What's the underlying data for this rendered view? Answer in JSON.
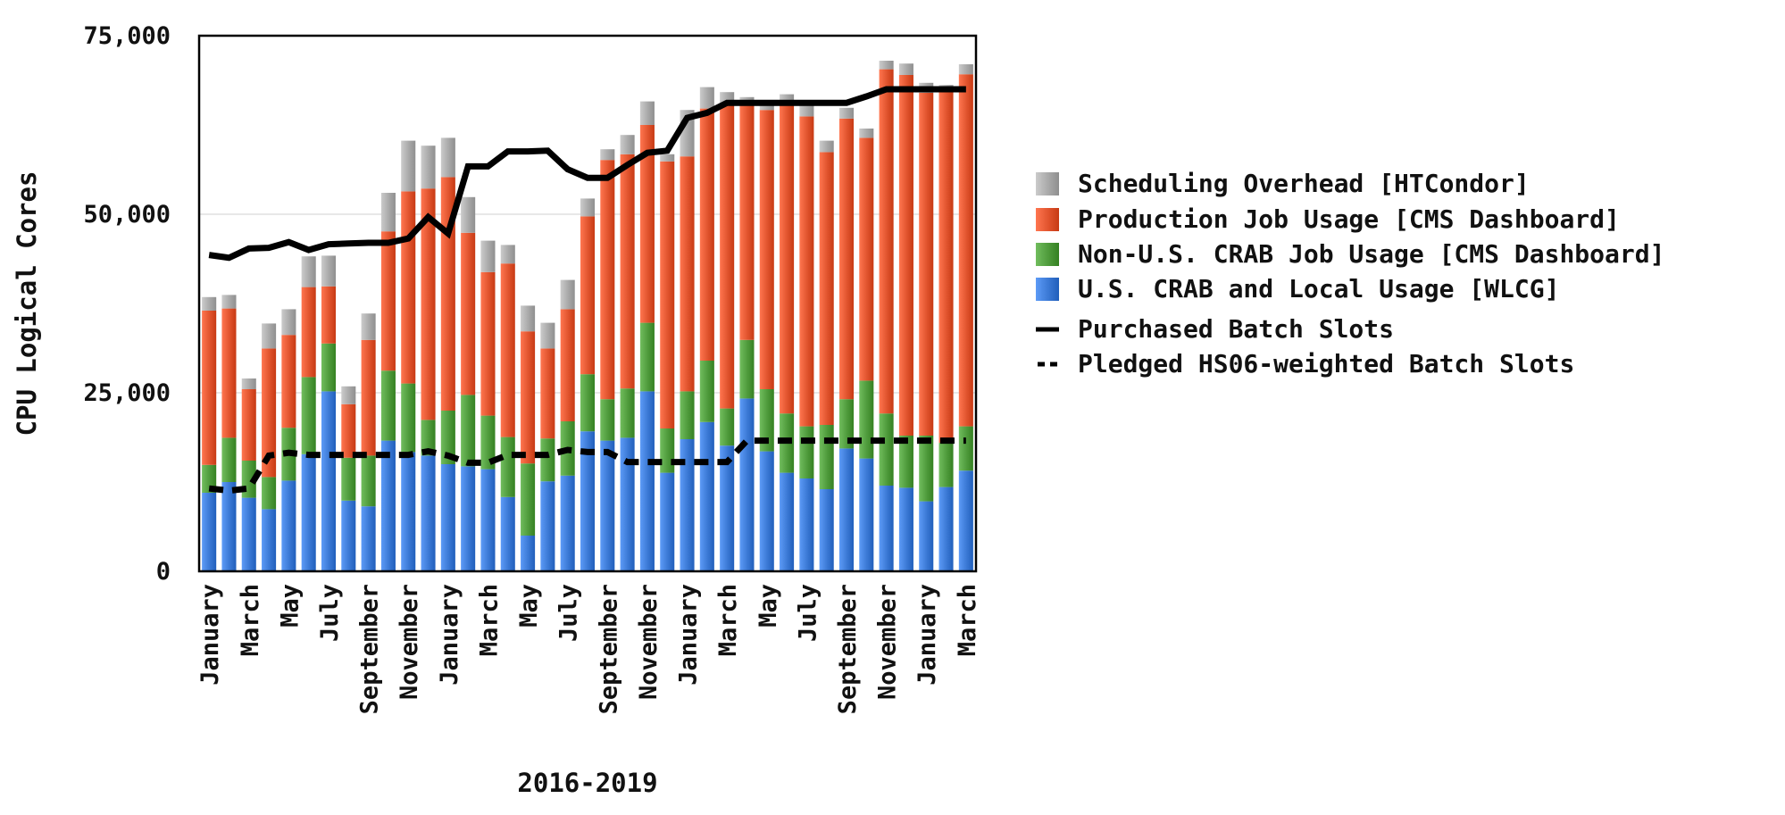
{
  "chart_data": {
    "type": "bar",
    "stacked": true,
    "xlabel": "2016-2019",
    "ylabel": "CPU Logical Cores",
    "ylim": [
      0,
      75000
    ],
    "yticks": [
      0,
      25000,
      50000,
      75000
    ],
    "ytick_labels": [
      "0",
      "25,000",
      "50,000",
      "75,000"
    ],
    "grid": "horizontal",
    "legend_position": "right",
    "categories": [
      "Jan 2016",
      "Feb 2016",
      "Mar 2016",
      "Apr 2016",
      "May 2016",
      "Jun 2016",
      "Jul 2016",
      "Aug 2016",
      "Sep 2016",
      "Oct 2016",
      "Nov 2016",
      "Dec 2016",
      "Jan 2017",
      "Feb 2017",
      "Mar 2017",
      "Apr 2017",
      "May 2017",
      "Jun 2017",
      "Jul 2017",
      "Aug 2017",
      "Sep 2017",
      "Oct 2017",
      "Nov 2017",
      "Dec 2017",
      "Jan 2018",
      "Feb 2018",
      "Mar 2018",
      "Apr 2018",
      "May 2018",
      "Jun 2018",
      "Jul 2018",
      "Aug 2018",
      "Sep 2018",
      "Oct 2018",
      "Nov 2018",
      "Dec 2018",
      "Jan 2019",
      "Feb 2019",
      "Mar 2019"
    ],
    "x_tick_labels": [
      "January",
      "",
      "March",
      "",
      "May",
      "",
      "July",
      "",
      "September",
      "",
      "November",
      "",
      "January",
      "",
      "March",
      "",
      "May",
      "",
      "July",
      "",
      "September",
      "",
      "November",
      "",
      "January",
      "",
      "March",
      "",
      "May",
      "",
      "July",
      "",
      "September",
      "",
      "November",
      "",
      "January",
      "",
      "March"
    ],
    "series": [
      {
        "name": "U.S. CRAB and Local Usage [WLCG]",
        "kind": "bar",
        "color": "#3a78d4",
        "values": [
          11000,
          12500,
          10300,
          8700,
          12700,
          16400,
          25200,
          9900,
          9100,
          18300,
          16700,
          16200,
          15000,
          14700,
          14300,
          10400,
          5000,
          12600,
          13400,
          19600,
          18300,
          18700,
          25200,
          13800,
          18500,
          20900,
          17600,
          24200,
          16800,
          13800,
          13000,
          11500,
          17200,
          15800,
          12000,
          11700,
          9800,
          11800,
          14100
        ]
      },
      {
        "name": "Non-U.S. CRAB Job Usage [CMS Dashboard]",
        "kind": "bar",
        "color": "#4e9a3b",
        "values": [
          3900,
          6200,
          5200,
          4500,
          7400,
          10800,
          6700,
          6000,
          7100,
          9800,
          9600,
          5000,
          7500,
          10000,
          7500,
          8400,
          10100,
          6000,
          7600,
          8000,
          5800,
          6900,
          9600,
          6200,
          6700,
          8600,
          5200,
          8200,
          8700,
          8300,
          7300,
          9000,
          6900,
          10900,
          10100,
          7300,
          9200,
          6200,
          6200
        ]
      },
      {
        "name": "Production Job Usage [CMS Dashboard]",
        "kind": "bar",
        "color": "#e0532d",
        "values": [
          21600,
          18100,
          10000,
          18000,
          13000,
          12600,
          8000,
          7500,
          16200,
          19500,
          26900,
          32400,
          32700,
          22700,
          20100,
          24300,
          18500,
          12600,
          15700,
          22100,
          33500,
          32800,
          27700,
          37400,
          32900,
          35300,
          42600,
          33000,
          39100,
          43200,
          43400,
          38200,
          39300,
          34000,
          48200,
          50500,
          48000,
          49200,
          49300
        ]
      },
      {
        "name": "Scheduling Overhead [HTCondor]",
        "kind": "bar",
        "color": "#a8a8a8",
        "values": [
          1900,
          1900,
          1500,
          3500,
          3600,
          4300,
          4300,
          2500,
          3700,
          5400,
          7100,
          6000,
          5500,
          5000,
          4400,
          2600,
          3600,
          3600,
          4100,
          2500,
          1500,
          2700,
          3300,
          1000,
          6500,
          3000,
          1700,
          1000,
          1300,
          1500,
          1900,
          1600,
          1500,
          1300,
          1200,
          1600,
          1400,
          900,
          1400
        ]
      },
      {
        "name": "Purchased Batch Slots",
        "kind": "line",
        "color": "#000000",
        "style": "solid",
        "values": [
          44300,
          43900,
          45200,
          45300,
          46100,
          45000,
          45800,
          45900,
          46000,
          46000,
          46600,
          49600,
          47300,
          56700,
          56700,
          58800,
          58800,
          58900,
          56300,
          55100,
          55100,
          56900,
          58600,
          58900,
          63500,
          64200,
          65600,
          65600,
          65600,
          65600,
          65600,
          65600,
          65600,
          66500,
          67500,
          67500,
          67500,
          67500,
          67500
        ]
      },
      {
        "name": "Pledged HS06-weighted Batch Slots",
        "kind": "line",
        "color": "#000000",
        "style": "dashed",
        "values": [
          11600,
          11300,
          11600,
          16200,
          16600,
          16300,
          16300,
          16300,
          16300,
          16300,
          16300,
          16800,
          16200,
          15200,
          15200,
          16300,
          16300,
          16300,
          17000,
          16700,
          16700,
          15300,
          15300,
          15300,
          15300,
          15300,
          15300,
          18300,
          18300,
          18300,
          18300,
          18300,
          18300,
          18300,
          18300,
          18300,
          18300,
          18300,
          18300
        ]
      }
    ]
  }
}
